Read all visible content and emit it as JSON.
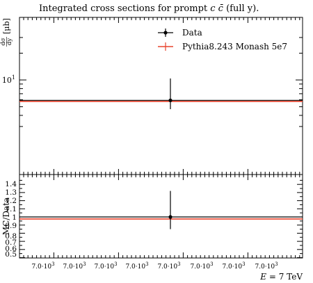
{
  "chart_data": {
    "type": "scatter",
    "title": "Integrated cross sections for prompt c̄c (full y).",
    "title_prefix": "Integrated cross sections for prompt ",
    "title_math": "c c̄",
    "title_suffix": " (full y).",
    "xlabel": "E = 7 TeV",
    "xlabel_var": "E",
    "xlabel_rest": " = 7 TeV",
    "ylabel": "dσ/dy [μb]",
    "ylabel_num": "dσ",
    "ylabel_den": "dy",
    "ylabel_unit": "[μb]",
    "yscale": "log",
    "main_ytick_labels": [
      "10"
    ],
    "main_ytick_exp": "1",
    "x_tick_labels": [
      "7.0·10³",
      "7.0·10³",
      "7.0·10³",
      "7.0·10³",
      "7.0·10³",
      "7.0·10³",
      "7.0·10³",
      "7.0·10³"
    ],
    "x_tick_mantissa": "7.0·10",
    "x_tick_exp": "3",
    "legend": {
      "placement": "top-right",
      "entries": [
        "Data",
        "Pythia8.243 Monash 5e7"
      ]
    },
    "series": [
      {
        "name": "Data",
        "color": "#000000",
        "x": 7000,
        "y": 5.9,
        "yerr_low": 1.2,
        "yerr_high": 4.5
      },
      {
        "name": "Pythia8.243 Monash 5e7",
        "color": "#e8432d",
        "y": 5.75
      }
    ],
    "ratio": {
      "ylabel": "MC/Data",
      "ytick_labels": [
        "0.5",
        "0.6",
        "0.7",
        "0.8",
        "0.9",
        "1",
        "1.1",
        "1.2",
        "1.3",
        "1.4"
      ],
      "ylim": [
        0.5,
        1.45
      ],
      "data": {
        "y": 1.0,
        "yerr_low": 0.15,
        "yerr_high": 0.32
      },
      "mc": {
        "y": 0.975
      }
    }
  }
}
